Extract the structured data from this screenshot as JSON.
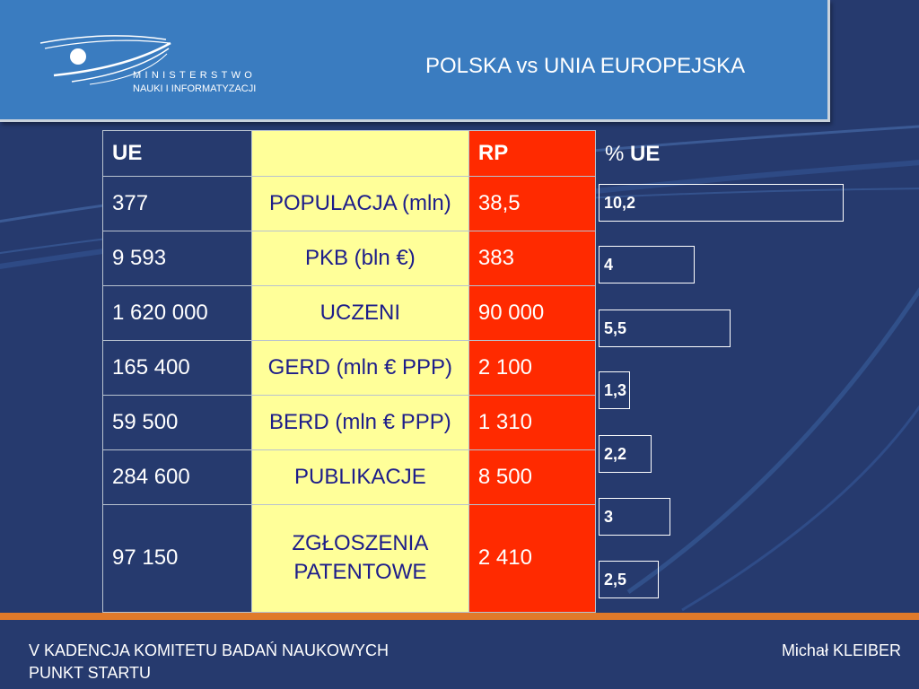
{
  "header": {
    "logo_name": "MINISTERSTWO",
    "logo_sub": "NAUKI I INFORMATYZACJI",
    "title": "POLSKA vs UNIA EUROPEJSKA"
  },
  "table": {
    "head": {
      "ue": "UE",
      "label": "",
      "rp": "RP"
    },
    "rows": [
      {
        "ue": "377",
        "label": "POPULACJA (mln)",
        "rp": "38,5"
      },
      {
        "ue": "9 593",
        "label": "PKB (bln €)",
        "rp": "383"
      },
      {
        "ue": "1 620 000",
        "label": "UCZENI",
        "rp": "90 000"
      },
      {
        "ue": "165 400",
        "label": "GERD (mln € PPP)",
        "rp": "2 100"
      },
      {
        "ue": "59 500",
        "label": "BERD (mln € PPP)",
        "rp": "1 310"
      },
      {
        "ue": "284 600",
        "label": "PUBLIKACJE",
        "rp": "8 500"
      },
      {
        "ue": "97 150",
        "label": "ZGŁOSZENIA PATENTOWE",
        "rp": "2 410"
      }
    ]
  },
  "percent": {
    "head_prefix": "%",
    "head_bold": "UE",
    "bars": [
      {
        "label": "10,2",
        "value": 10.2
      },
      {
        "label": "4",
        "value": 4
      },
      {
        "label": "5,5",
        "value": 5.5
      },
      {
        "label": "1,3",
        "value": 1.3
      },
      {
        "label": "2,2",
        "value": 2.2
      },
      {
        "label": "3",
        "value": 3
      },
      {
        "label": "2,5",
        "value": 2.5
      }
    ]
  },
  "footer": {
    "line1": "V KADENCJA KOMITETU BADAŃ NAUKOWYCH",
    "line2": "PUNKT STARTU",
    "author": "Michał KLEIBER"
  },
  "colors": {
    "background": "#263a6e",
    "header": "#3a7cc0",
    "label_column": "#ffff99",
    "rp_column": "#ff2a00",
    "divider": "#e07a2a"
  }
}
